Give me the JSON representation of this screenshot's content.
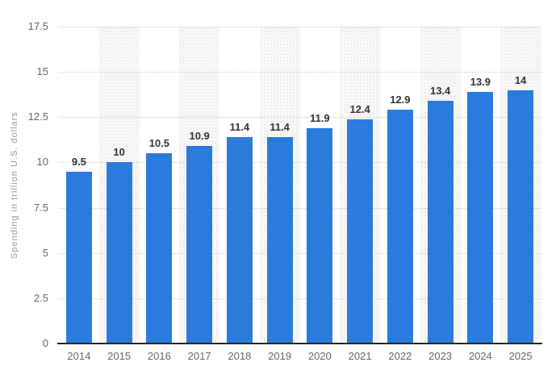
{
  "chart_data": {
    "type": "bar",
    "title": "",
    "categories": [
      "2014",
      "2015",
      "2016",
      "2017",
      "2018",
      "2019",
      "2020",
      "2021",
      "2022",
      "2023",
      "2024",
      "2025"
    ],
    "values": [
      9.5,
      10,
      10.5,
      10.9,
      11.4,
      11.4,
      11.9,
      12.4,
      12.9,
      13.4,
      13.9,
      14
    ],
    "value_labels": [
      "9.5",
      "10",
      "10.5",
      "10.9",
      "11.4",
      "11.4",
      "11.9",
      "12.4",
      "12.9",
      "13.4",
      "13.9",
      "14"
    ],
    "xlabel": "",
    "ylabel": "Spending in trillion U.S. dollars",
    "ylim": [
      0,
      17.5
    ],
    "yticks": [
      0,
      2.5,
      5,
      7.5,
      10,
      12.5,
      15,
      17.5
    ],
    "ytick_labels": [
      "0",
      "2.5",
      "5",
      "7.5",
      "10",
      "12.5",
      "15",
      "17.5"
    ],
    "grid": "horizontal-dotted",
    "legend": "none",
    "plot_bands": "alternating columns shaded (2015, 2017, 2019, 2021, 2023, 2025)",
    "colors": {
      "bar": "#2b7bdd",
      "band_fill": "#f8f8f8",
      "band_dot": "#e9e9e9",
      "gridline": "#cccccc",
      "axis_line": "#262626",
      "tick_label": "#666666",
      "data_label": "#333333",
      "axis_title": "#999999",
      "background": "#ffffff"
    }
  }
}
